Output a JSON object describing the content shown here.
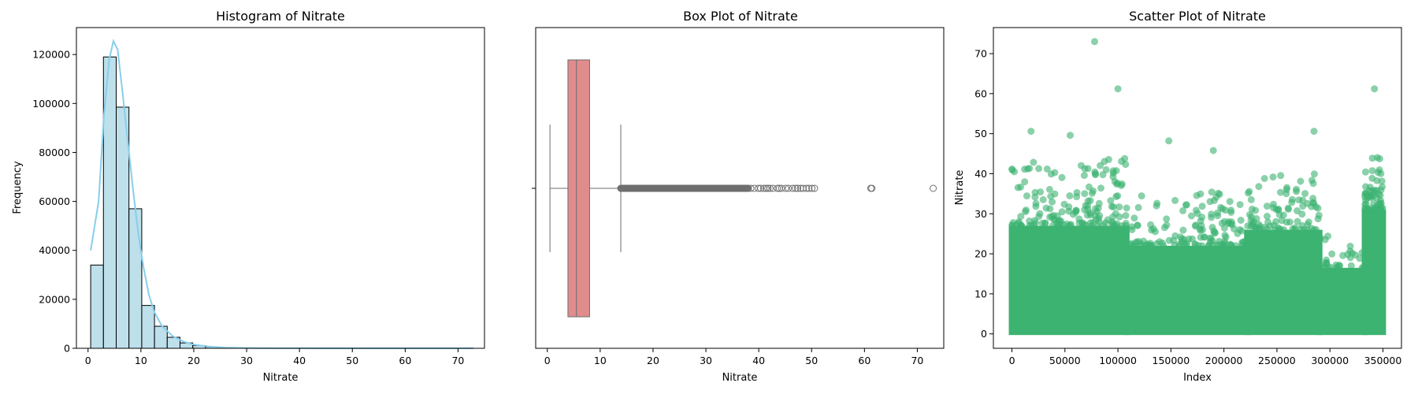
{
  "colors": {
    "hist_fill": "#ADD8E6",
    "hist_edge": "#000000",
    "kde_line": "#87CEEB",
    "box_fill": "#E08C8C",
    "box_line": "#6E6E6E",
    "scatter_point": "#3CB371"
  },
  "chart_data": [
    {
      "type": "bar",
      "subtype": "histogram",
      "title": "Histogram of Nitrate",
      "xlabel": "Nitrate",
      "ylabel": "Frequency",
      "xlim": [
        -2.2,
        75.0
      ],
      "ylim": [
        0,
        131000
      ],
      "xticks": [
        0,
        10,
        20,
        30,
        40,
        50,
        60,
        70
      ],
      "yticks": [
        0,
        20000,
        40000,
        60000,
        80000,
        100000,
        120000
      ],
      "bin_edges": [
        0.5,
        2.91,
        5.33,
        7.74,
        10.16,
        12.57,
        14.98,
        17.4,
        19.81,
        22.22,
        24.64,
        27.05,
        29.47,
        31.88,
        34.29,
        36.71,
        39.12,
        41.54,
        43.95,
        46.36,
        48.78,
        51.19,
        53.61,
        56.02,
        58.43,
        60.85,
        63.26,
        65.68,
        68.09,
        70.5,
        72.92
      ],
      "values": [
        34000,
        119000,
        98500,
        57000,
        17500,
        9000,
        4500,
        2200,
        1100,
        600,
        300,
        150,
        80,
        50,
        30,
        20,
        15,
        10,
        8,
        6,
        4,
        2,
        1,
        1,
        1,
        2,
        0,
        0,
        0,
        1
      ],
      "kde": {
        "x": [
          0.5,
          2.0,
          3.0,
          4.0,
          4.8,
          5.6,
          6.5,
          7.5,
          8.5,
          9.5,
          10.5,
          11.5,
          12.5,
          14.0,
          16.0,
          18.0,
          20.0,
          23.0,
          26.0,
          30.0,
          35.0,
          45.0,
          55.0,
          65.0,
          72.9
        ],
        "y": [
          40000,
          60000,
          95000,
          118000,
          125500,
          122000,
          105000,
          85000,
          65000,
          47000,
          33000,
          22000,
          15000,
          9000,
          5000,
          2800,
          1500,
          700,
          300,
          120,
          50,
          15,
          5,
          3,
          2
        ]
      }
    },
    {
      "type": "box",
      "title": "Box Plot of Nitrate",
      "xlabel": "Nitrate",
      "xlim": [
        -2.2,
        75.0
      ],
      "xticks": [
        0,
        10,
        20,
        30,
        40,
        50,
        60,
        70
      ],
      "whisker_low": 0.5,
      "q1": 3.9,
      "median": 5.5,
      "q3": 8.0,
      "whisker_high": 13.9,
      "outliers": [
        61.2,
        61.4,
        73.0
      ],
      "outlier_dense_range": [
        13.9,
        51.0
      ]
    },
    {
      "type": "scatter",
      "title": "Scatter Plot of Nitrate",
      "xlabel": "Index",
      "ylabel": "Nitrate",
      "xlim": [
        -17500,
        367500
      ],
      "ylim": [
        -3.6,
        76.5
      ],
      "xticks": [
        0,
        50000,
        100000,
        150000,
        200000,
        250000,
        300000,
        350000
      ],
      "yticks": [
        0,
        10,
        20,
        30,
        40,
        50,
        60,
        70
      ],
      "n_points": 351000,
      "notable_points": [
        {
          "x": 78000,
          "y": 73.0
        },
        {
          "x": 100000,
          "y": 61.2
        },
        {
          "x": 342000,
          "y": 61.2
        },
        {
          "x": 285000,
          "y": 50.6
        },
        {
          "x": 18000,
          "y": 50.6
        },
        {
          "x": 55000,
          "y": 49.6
        },
        {
          "x": 148000,
          "y": 48.2
        },
        {
          "x": 190000,
          "y": 45.8
        }
      ]
    }
  ]
}
